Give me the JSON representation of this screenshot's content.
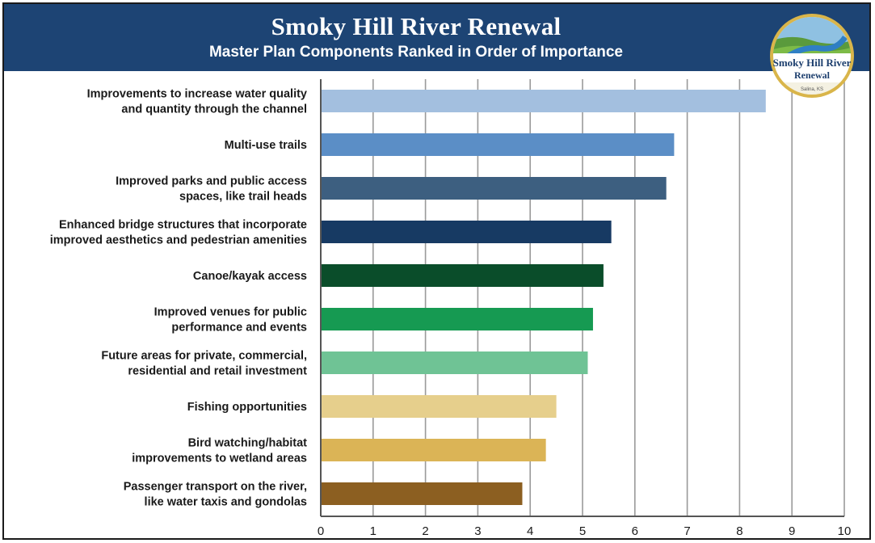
{
  "header": {
    "title": "Smoky Hill River Renewal",
    "subtitle": "Master Plan Components Ranked in Order of Importance"
  },
  "logo": {
    "line1": "Smoky Hill River",
    "line2": "Renewal",
    "small": "Salina, KS"
  },
  "colors": {
    "header_bg": "#1d4474",
    "grid": "#9a9a9a",
    "axis": "#555555"
  },
  "chart_data": {
    "type": "bar",
    "orientation": "horizontal",
    "title": "Master Plan Components Ranked in Order of Importance",
    "xlim": [
      0,
      10
    ],
    "x_ticks": [
      "0",
      "1",
      "2",
      "3",
      "4",
      "5",
      "6",
      "7",
      "8",
      "9",
      "10"
    ],
    "grid": true,
    "categories": [
      [
        "Improvements to increase water quality",
        "and quantity through the channel"
      ],
      [
        "Multi-use trails"
      ],
      [
        "Improved parks and public access",
        "spaces, like trail heads"
      ],
      [
        "Enhanced bridge structures that incorporate",
        "improved aesthetics and pedestrian amenities"
      ],
      [
        "Canoe/kayak access"
      ],
      [
        "Improved venues for public",
        "performance and events"
      ],
      [
        "Future areas for private, commercial,",
        "residential and retail investment"
      ],
      [
        "Fishing opportunities"
      ],
      [
        "Bird watching/habitat",
        "improvements to wetland areas"
      ],
      [
        "Passenger transport on the river,",
        "like water taxis and gondolas"
      ]
    ],
    "values": [
      8.5,
      6.75,
      6.6,
      5.55,
      5.4,
      5.2,
      5.1,
      4.5,
      4.3,
      3.85
    ],
    "bar_colors": [
      "#a3bfdf",
      "#5b8ec6",
      "#3d5f80",
      "#173a63",
      "#0a4d2a",
      "#169a52",
      "#6fc395",
      "#e6cf8c",
      "#dbb456",
      "#8c5f21"
    ]
  }
}
